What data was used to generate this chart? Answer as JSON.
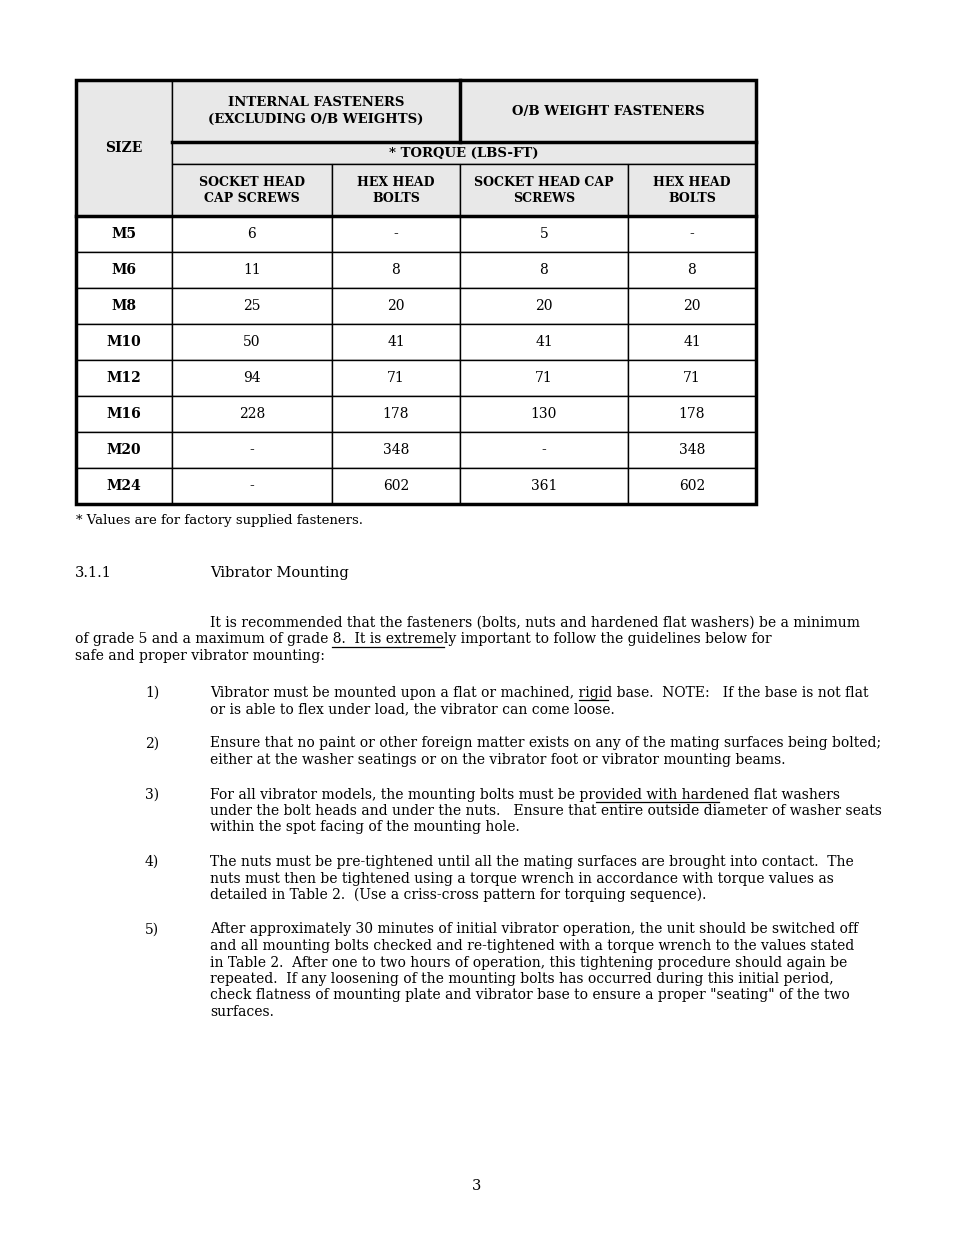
{
  "table_data": [
    [
      "M5",
      "6",
      "-",
      "5",
      "-"
    ],
    [
      "M6",
      "11",
      "8",
      "8",
      "8"
    ],
    [
      "M8",
      "25",
      "20",
      "20",
      "20"
    ],
    [
      "M10",
      "50",
      "41",
      "41",
      "41"
    ],
    [
      "M12",
      "94",
      "71",
      "71",
      "71"
    ],
    [
      "M16",
      "228",
      "178",
      "130",
      "178"
    ],
    [
      "M20",
      "-",
      "348",
      "-",
      "348"
    ],
    [
      "M24",
      "-",
      "602",
      "361",
      "602"
    ]
  ],
  "footnote": "* Values are for factory supplied fasteners.",
  "section_num": "3.1.1",
  "section_title": "Vibrator Mounting",
  "intro_lines": [
    "It is recommended that the fasteners (bolts, nuts and hardened flat washers) be a minimum",
    "of grade 5 and a maximum of grade 8.  It is extremely important to follow the guidelines below for",
    "safe and proper vibrator mounting:"
  ],
  "item1_lines": [
    "Vibrator must be mounted upon a flat or machined, rigid base.  NOTE:   If the base is not flat",
    "or is able to flex under load, the vibrator can come loose."
  ],
  "item2_lines": [
    "Ensure that no paint or other foreign matter exists on any of the mating surfaces being bolted;",
    "either at the washer seatings or on the vibrator foot or vibrator mounting beams."
  ],
  "item3_lines": [
    "For all vibrator models, the mounting bolts must be provided with hardened flat washers",
    "under the bolt heads and under the nuts.   Ensure that entire outside diameter of washer seats",
    "within the spot facing of the mounting hole."
  ],
  "item4_lines": [
    "The nuts must be pre-tightened until all the mating surfaces are brought into contact.  The",
    "nuts must then be tightened using a torque wrench in accordance with torque values as",
    "detailed in Table 2.  (Use a criss-cross pattern for torquing sequence)."
  ],
  "item5_lines": [
    "After approximately 30 minutes of initial vibrator operation, the unit should be switched off",
    "and all mounting bolts checked and re-tightened with a torque wrench to the values stated",
    "in Table 2.  After one to two hours of operation, this tightening procedure should again be",
    "repeated.  If any loosening of the mounting bolts has occurred during this initial period,",
    "check flatness of mounting plate and vibrator base to ensure a proper \"seating\" of the two",
    "surfaces."
  ],
  "page_num": "3",
  "header_bg": "#e8e8e8",
  "white": "#ffffff",
  "black": "#000000"
}
